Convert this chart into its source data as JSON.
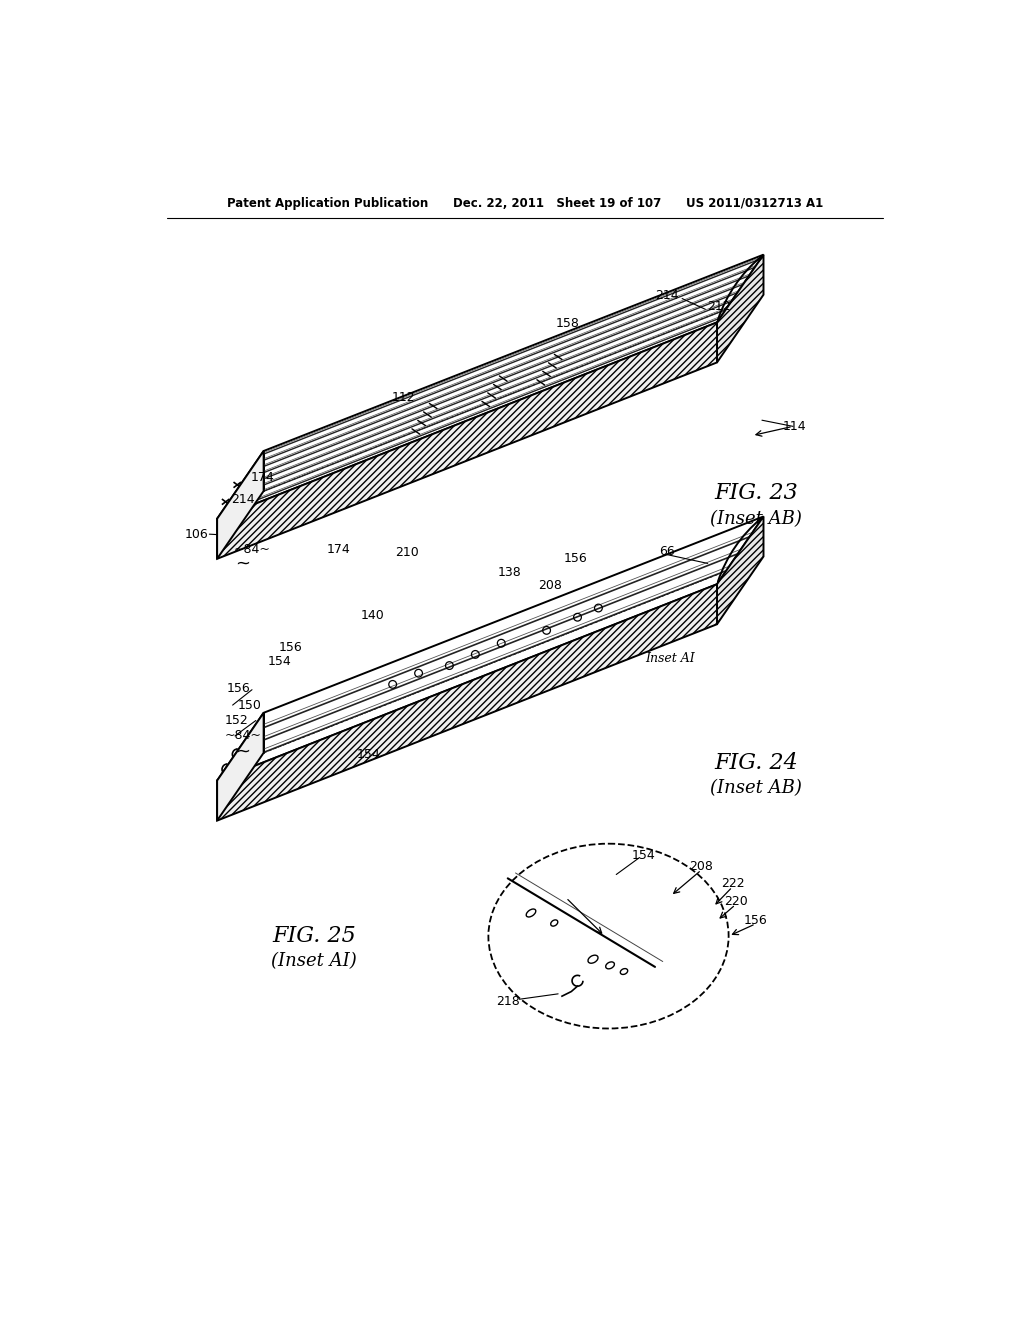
{
  "bg": "#ffffff",
  "header": "Patent Application Publication      Dec. 22, 2011   Sheet 19 of 107      US 2011/0312713 A1",
  "fig23_title": "FIG. 23",
  "fig23_sub": "(Inset AB)",
  "fig24_title": "FIG. 24",
  "fig24_sub": "(Inset AB)",
  "fig25_title": "FIG. 25",
  "fig25_sub": "(Inset AI)"
}
